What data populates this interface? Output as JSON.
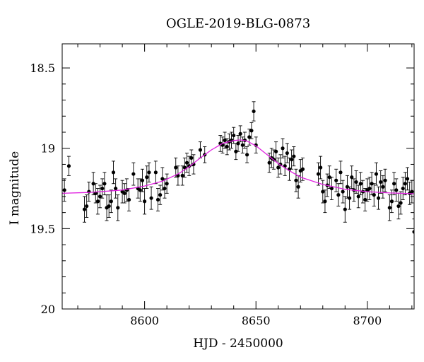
{
  "chart_data": {
    "type": "scatter",
    "title": "OGLE-2019-BLG-0873",
    "xlabel": "HJD - 2450000",
    "ylabel": "I magnitude",
    "xlim": [
      8563,
      8721
    ],
    "ylim": [
      20,
      18.35
    ],
    "y_inverted": true,
    "x_ticks": [
      8600,
      8650,
      8700
    ],
    "x_tick_labels": [
      "8600",
      "8650",
      "8700"
    ],
    "y_ticks": [
      18.5,
      19,
      19.5,
      20
    ],
    "y_tick_labels": [
      "18.5",
      "19",
      "19.5",
      "20"
    ],
    "grid": false,
    "legend": "none",
    "colors": {
      "points": "#000000",
      "model": "#e020e0",
      "frame": "#000000"
    },
    "model": {
      "name": "",
      "x": [
        8563,
        8575,
        8590,
        8600,
        8608,
        8615,
        8620,
        8625,
        8630,
        8635,
        8640,
        8643,
        8646,
        8650,
        8655,
        8660,
        8665,
        8670,
        8680,
        8690,
        8700,
        8710,
        8721
      ],
      "y": [
        19.28,
        19.275,
        19.26,
        19.235,
        19.205,
        19.16,
        19.115,
        19.06,
        19.01,
        18.97,
        18.952,
        18.948,
        18.955,
        18.985,
        19.04,
        19.095,
        19.14,
        19.18,
        19.225,
        19.255,
        19.27,
        19.278,
        19.283
      ]
    },
    "points": {
      "x": [
        8564,
        8566,
        8573,
        8574,
        8575,
        8577,
        8578,
        8579,
        8580,
        8581,
        8582,
        8583,
        8584,
        8585,
        8586,
        8587,
        8588,
        8590,
        8591,
        8592,
        8593,
        8595,
        8597,
        8598,
        8599,
        8600,
        8601,
        8602,
        8603,
        8605,
        8606,
        8607,
        8608,
        8609,
        8610,
        8614,
        8615,
        8617,
        8618,
        8619,
        8620,
        8621,
        8622,
        8625,
        8627,
        8634,
        8635,
        8636,
        8637,
        8638,
        8639,
        8640,
        8641,
        8642,
        8643,
        8644,
        8645,
        8646,
        8647,
        8648,
        8649,
        8650,
        8656,
        8657,
        8658,
        8659,
        8660,
        8661,
        8662,
        8663,
        8664,
        8665,
        8666,
        8667,
        8668,
        8669,
        8670,
        8671,
        8678,
        8679,
        8680,
        8681,
        8682,
        8683,
        8684,
        8686,
        8687,
        8688,
        8689,
        8690,
        8691,
        8692,
        8693,
        8694,
        8695,
        8696,
        8697,
        8698,
        8699,
        8700,
        8701,
        8702,
        8703,
        8704,
        8705,
        8706,
        8707,
        8708,
        8710,
        8711,
        8712,
        8713,
        8714,
        8715,
        8716,
        8717,
        8718,
        8719,
        8720,
        8721
      ],
      "y": [
        19.26,
        19.11,
        19.38,
        19.36,
        19.27,
        19.22,
        19.28,
        19.33,
        19.3,
        19.25,
        19.22,
        19.37,
        19.36,
        19.33,
        19.15,
        19.25,
        19.37,
        19.27,
        19.28,
        19.26,
        19.32,
        19.16,
        19.25,
        19.26,
        19.2,
        19.33,
        19.18,
        19.15,
        19.31,
        19.15,
        19.32,
        19.29,
        19.19,
        19.25,
        19.22,
        19.12,
        19.17,
        19.17,
        19.12,
        19.09,
        19.11,
        19.06,
        19.1,
        19.01,
        19.04,
        18.97,
        18.98,
        18.95,
        18.99,
        18.96,
        18.95,
        18.92,
        19.02,
        18.97,
        18.91,
        18.98,
        18.95,
        19.04,
        18.93,
        18.89,
        18.77,
        18.98,
        19.09,
        19.06,
        19.07,
        19.02,
        19.12,
        19.1,
        19.0,
        19.11,
        19.03,
        19.13,
        19.07,
        19.05,
        19.2,
        19.24,
        19.14,
        19.13,
        19.16,
        19.12,
        19.27,
        19.33,
        19.23,
        19.18,
        19.25,
        19.2,
        19.29,
        19.15,
        19.27,
        19.38,
        19.24,
        19.31,
        19.18,
        19.26,
        19.21,
        19.3,
        19.22,
        19.27,
        19.32,
        19.26,
        19.25,
        19.22,
        19.29,
        19.16,
        19.31,
        19.21,
        19.24,
        19.2,
        19.37,
        19.33,
        19.22,
        19.26,
        19.36,
        19.34,
        19.25,
        19.22,
        19.19,
        19.28,
        19.27,
        19.52
      ],
      "err": [
        0.07,
        0.06,
        0.08,
        0.07,
        0.06,
        0.07,
        0.06,
        0.08,
        0.07,
        0.06,
        0.07,
        0.08,
        0.07,
        0.07,
        0.07,
        0.06,
        0.08,
        0.07,
        0.06,
        0.07,
        0.07,
        0.07,
        0.06,
        0.07,
        0.07,
        0.08,
        0.07,
        0.06,
        0.07,
        0.07,
        0.07,
        0.06,
        0.07,
        0.06,
        0.06,
        0.06,
        0.06,
        0.06,
        0.06,
        0.06,
        0.06,
        0.05,
        0.06,
        0.05,
        0.05,
        0.05,
        0.05,
        0.05,
        0.05,
        0.05,
        0.05,
        0.05,
        0.05,
        0.05,
        0.05,
        0.05,
        0.05,
        0.05,
        0.05,
        0.05,
        0.06,
        0.05,
        0.06,
        0.06,
        0.06,
        0.06,
        0.06,
        0.06,
        0.06,
        0.06,
        0.06,
        0.07,
        0.06,
        0.06,
        0.07,
        0.07,
        0.07,
        0.07,
        0.07,
        0.07,
        0.07,
        0.07,
        0.07,
        0.07,
        0.07,
        0.07,
        0.07,
        0.07,
        0.07,
        0.08,
        0.07,
        0.07,
        0.07,
        0.07,
        0.07,
        0.07,
        0.07,
        0.07,
        0.07,
        0.07,
        0.07,
        0.07,
        0.07,
        0.07,
        0.07,
        0.07,
        0.07,
        0.07,
        0.08,
        0.07,
        0.07,
        0.07,
        0.08,
        0.07,
        0.07,
        0.07,
        0.07,
        0.07,
        0.07,
        0.08
      ]
    }
  }
}
